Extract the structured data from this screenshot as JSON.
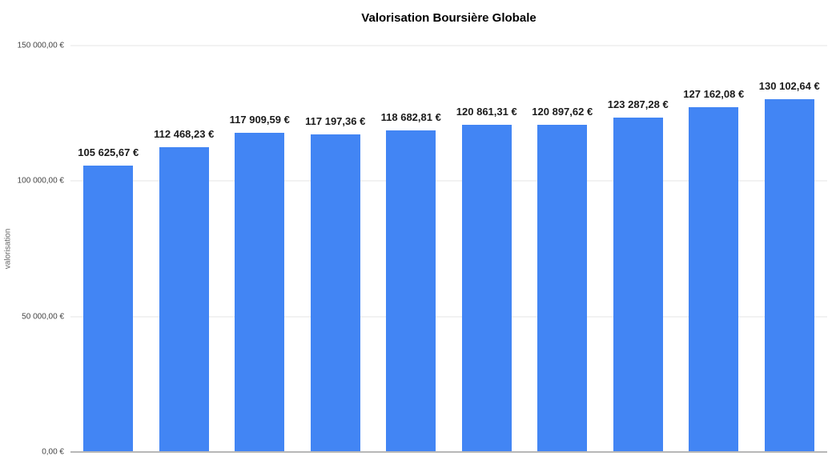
{
  "chart_data": {
    "type": "bar",
    "title": "Valorisation Boursière Globale",
    "xlabel": "",
    "ylabel": "valorisation",
    "ylim": [
      0,
      150000
    ],
    "grid": true,
    "legend": "none",
    "bar_color": "#4285f4",
    "values": [
      105625.67,
      112468.23,
      117909.59,
      117197.36,
      118682.81,
      120861.31,
      120897.62,
      123287.28,
      127162.08,
      130102.64
    ],
    "bar_labels": [
      "105 625,67 €",
      "112 468,23 €",
      "117 909,59 €",
      "117 197,36 €",
      "118 682,81 €",
      "120 861,31 €",
      "120 897,62 €",
      "123 287,28 €",
      "127 162,08 €",
      "130 102,64 €"
    ],
    "y_ticks": [
      {
        "value": 0,
        "label": "0,00 €"
      },
      {
        "value": 50000,
        "label": "50 000,00 €"
      },
      {
        "value": 100000,
        "label": "100 000,00 €"
      },
      {
        "value": 150000,
        "label": "150 000,00 €"
      }
    ]
  },
  "colors": {
    "background": "#ffffff",
    "bar": "#4285f4",
    "gridline": "#e6e6e6",
    "axis_baseline": "#b7b7b7",
    "tick_label": "#444444",
    "annotation": "#1a1a1a",
    "axis_title": "#666666",
    "title": "#000000"
  }
}
